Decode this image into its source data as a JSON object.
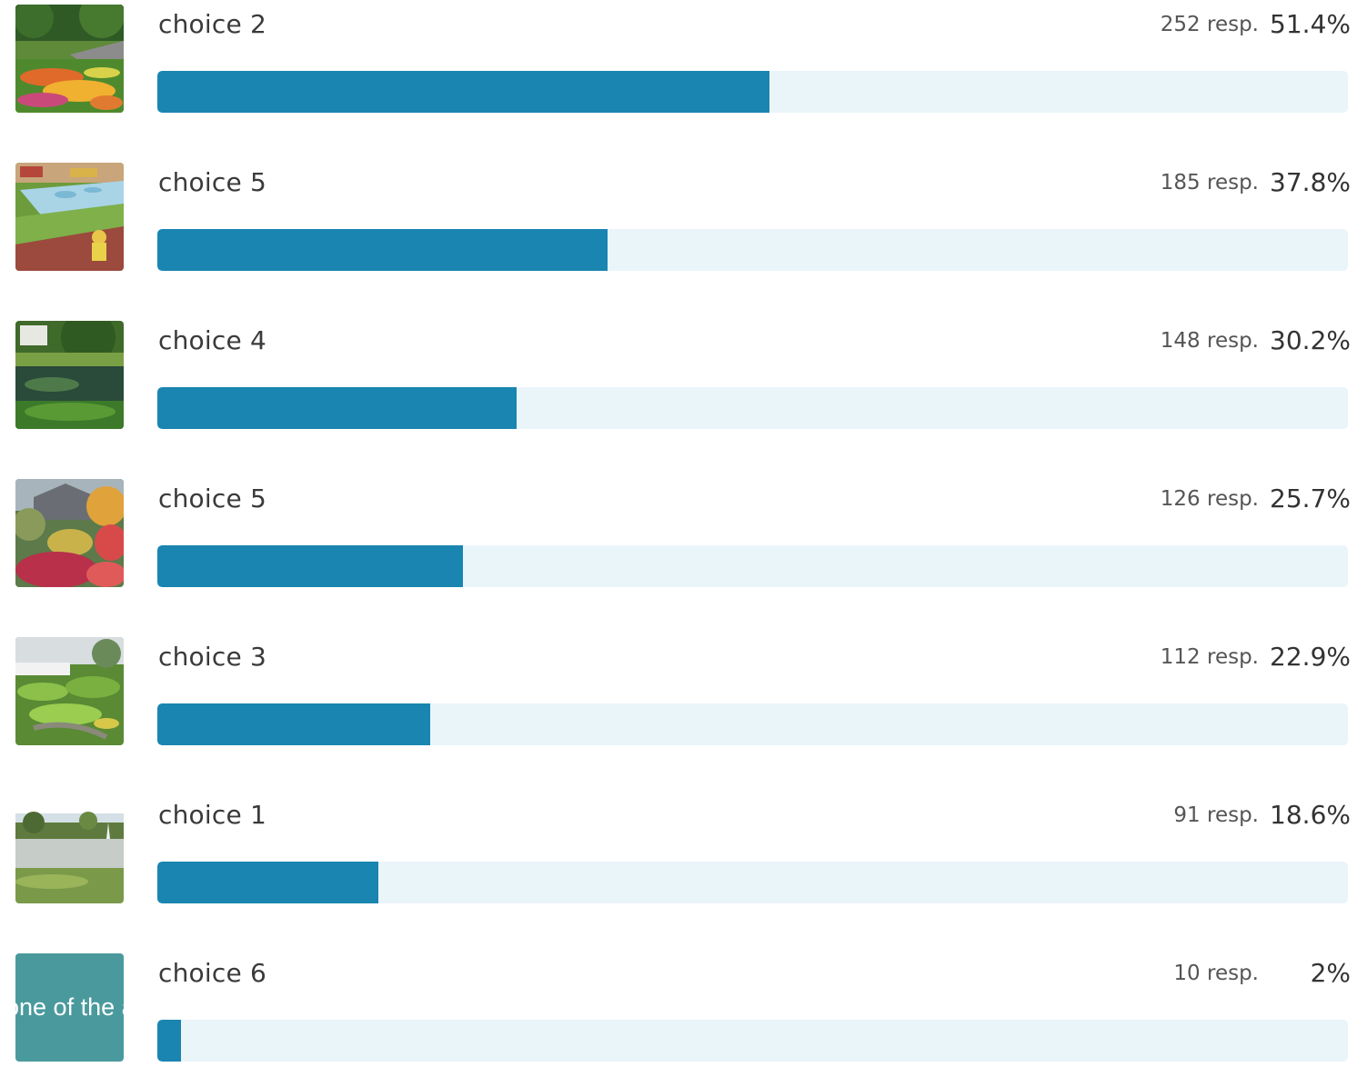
{
  "chart_data": {
    "type": "bar",
    "orientation": "horizontal",
    "max_value": 100,
    "unit": "%",
    "colors": {
      "bar_fill": "#1a85b0",
      "bar_track": "#eaf5fa",
      "text_thumb_bg": "#4a9a9d"
    },
    "rows": [
      {
        "label": "choice 2",
        "responses": "252 resp.",
        "percent_label": "51.4%",
        "value": 51.4,
        "thumb": "garden-flowerbed-photo"
      },
      {
        "label": "choice 5",
        "responses": "185 resp.",
        "percent_label": "37.8%",
        "value": 37.8,
        "thumb": "splash-pad-photo"
      },
      {
        "label": "choice 4",
        "responses": "148 resp.",
        "percent_label": "30.2%",
        "value": 30.2,
        "thumb": "lily-pond-photo"
      },
      {
        "label": "choice 5",
        "responses": "126 resp.",
        "percent_label": "25.7%",
        "value": 25.7,
        "thumb": "autumn-shrubs-photo"
      },
      {
        "label": "choice 3",
        "responses": "112 resp.",
        "percent_label": "22.9%",
        "value": 22.9,
        "thumb": "rain-garden-photo"
      },
      {
        "label": "choice 1",
        "responses": "91 resp.",
        "percent_label": "18.6%",
        "value": 18.6,
        "thumb": "pond-fountain-photo"
      },
      {
        "label": "choice 6",
        "responses": "10 resp.",
        "percent_label": "2%",
        "value": 2,
        "thumb": "text-tile",
        "thumb_text": "None of the above."
      }
    ]
  }
}
